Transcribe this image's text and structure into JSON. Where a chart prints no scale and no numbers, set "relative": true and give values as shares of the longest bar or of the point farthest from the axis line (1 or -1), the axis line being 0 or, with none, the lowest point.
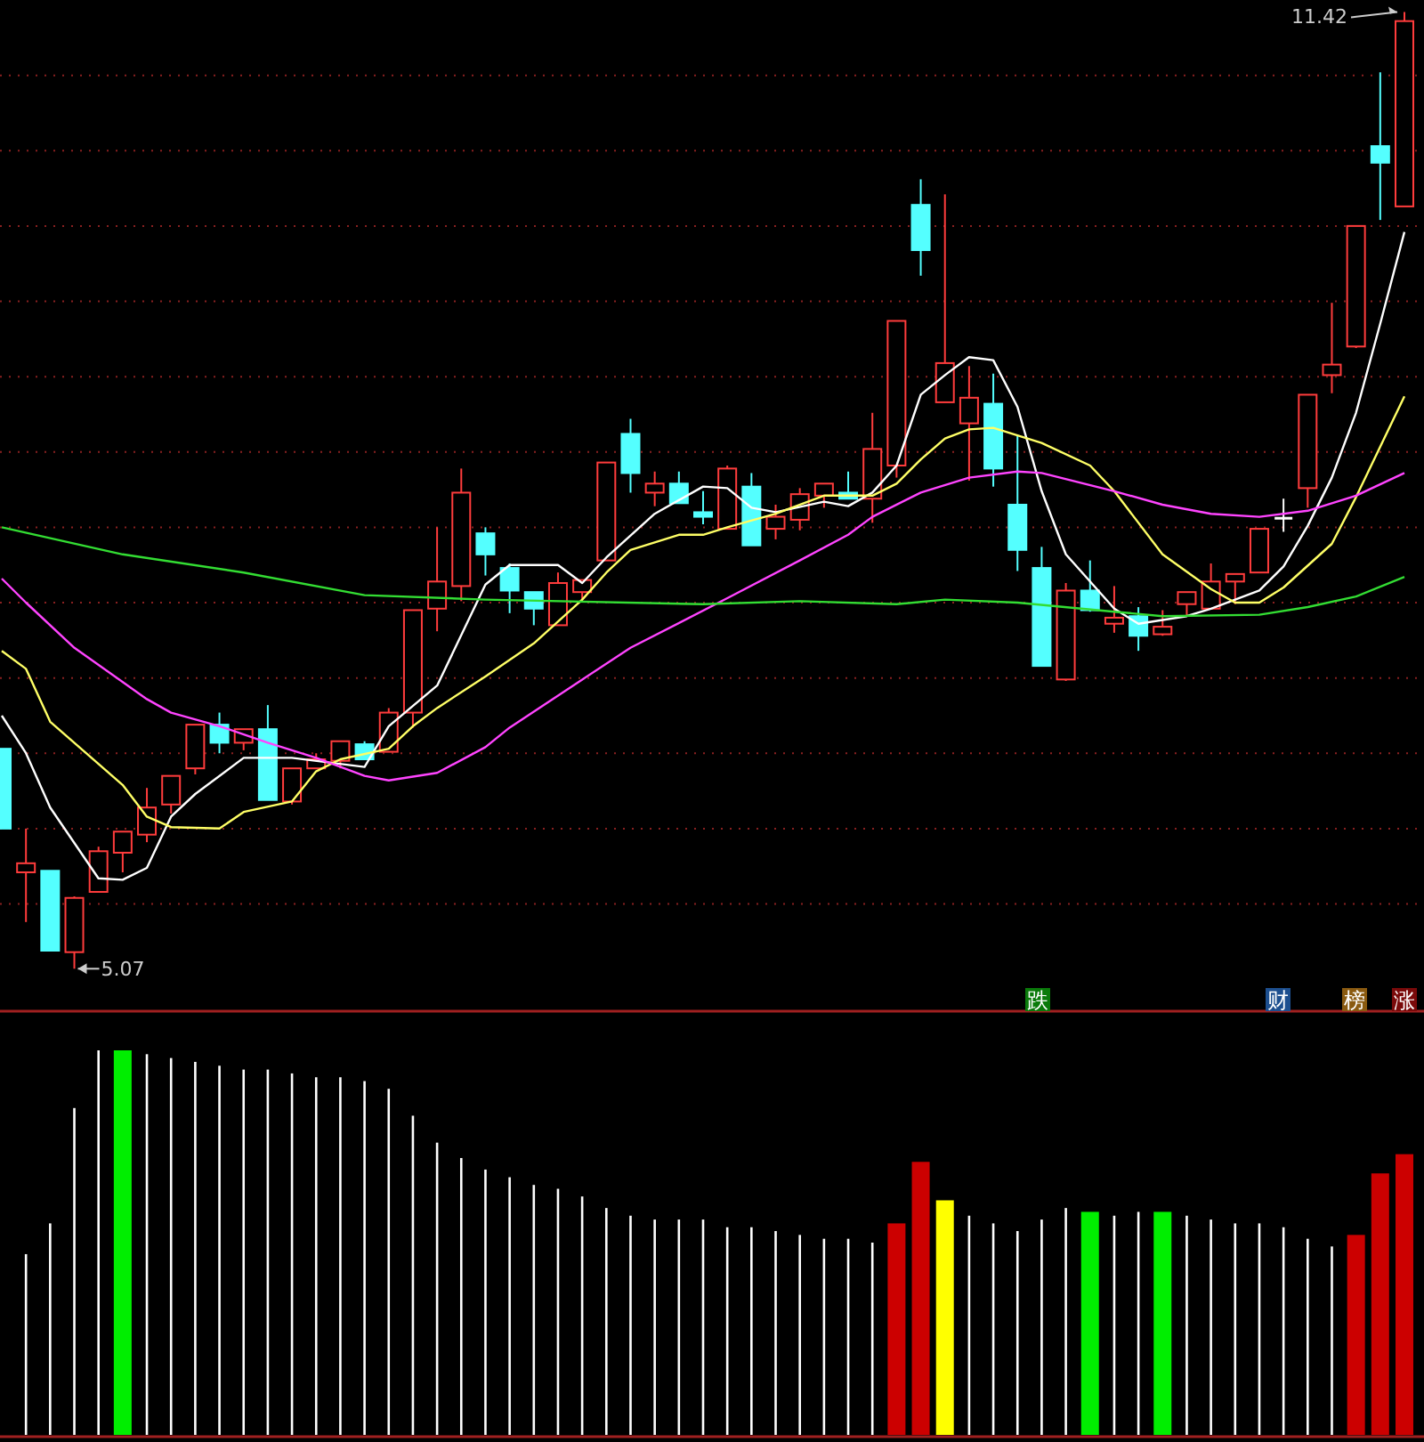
{
  "chart_data": [
    {
      "type": "candlestick",
      "categories": [
        null,
        null,
        null,
        null,
        null,
        null,
        null,
        null,
        null,
        null,
        null,
        null,
        null,
        null,
        null,
        null,
        null,
        null,
        null,
        null,
        null,
        null,
        null,
        null,
        null,
        null,
        null,
        null,
        null,
        null,
        null,
        null,
        null,
        null,
        null,
        null,
        null,
        null,
        null,
        null,
        null,
        null,
        null,
        null,
        null,
        null,
        null,
        null,
        null,
        null,
        null,
        null,
        null,
        null,
        null,
        null,
        null,
        null,
        null
      ],
      "ohlc": [
        [
          6.53,
          6.53,
          6.0,
          6.0
        ],
        [
          5.71,
          6.0,
          5.38,
          5.77
        ],
        [
          5.72,
          5.72,
          5.19,
          5.19
        ],
        [
          5.18,
          5.55,
          5.07,
          5.54
        ],
        [
          5.58,
          5.88,
          5.58,
          5.85
        ],
        [
          5.84,
          5.98,
          5.71,
          5.98
        ],
        [
          5.96,
          6.27,
          5.91,
          6.14
        ],
        [
          6.16,
          6.35,
          6.1,
          6.35
        ],
        [
          6.4,
          6.69,
          6.36,
          6.69
        ],
        [
          6.69,
          6.77,
          6.5,
          6.57
        ],
        [
          6.57,
          6.66,
          6.52,
          6.66
        ],
        [
          6.66,
          6.82,
          6.19,
          6.19
        ],
        [
          6.18,
          6.4,
          6.16,
          6.4
        ],
        [
          6.4,
          6.5,
          6.4,
          6.46
        ],
        [
          6.45,
          6.58,
          6.4,
          6.58
        ],
        [
          6.56,
          6.58,
          6.46,
          6.46
        ],
        [
          6.51,
          6.8,
          6.51,
          6.77
        ],
        [
          6.77,
          7.45,
          6.67,
          7.45
        ],
        [
          7.46,
          8.0,
          7.31,
          7.64
        ],
        [
          7.61,
          8.39,
          7.51,
          8.23
        ],
        [
          7.96,
          8.0,
          7.68,
          7.82
        ],
        [
          7.73,
          7.76,
          7.43,
          7.58
        ],
        [
          7.57,
          7.57,
          7.35,
          7.46
        ],
        [
          7.35,
          7.7,
          7.35,
          7.63
        ],
        [
          7.57,
          7.65,
          7.5,
          7.65
        ],
        [
          7.78,
          8.43,
          7.78,
          8.43
        ],
        [
          8.62,
          8.72,
          8.23,
          8.36
        ],
        [
          8.23,
          8.37,
          8.14,
          8.29
        ],
        [
          8.29,
          8.37,
          8.16,
          8.16
        ],
        [
          8.1,
          8.24,
          8.02,
          8.07
        ],
        [
          7.99,
          8.41,
          7.99,
          8.39
        ],
        [
          8.27,
          8.36,
          7.88,
          7.88
        ],
        [
          7.99,
          8.15,
          7.92,
          8.07
        ],
        [
          8.05,
          8.26,
          7.98,
          8.22
        ],
        [
          8.21,
          8.29,
          8.13,
          8.29
        ],
        [
          8.23,
          8.37,
          8.19,
          8.19
        ],
        [
          8.19,
          8.76,
          8.03,
          8.52
        ],
        [
          8.41,
          9.37,
          8.33,
          9.37
        ],
        [
          10.14,
          10.31,
          9.67,
          9.84
        ],
        [
          8.83,
          10.21,
          8.83,
          9.09
        ],
        [
          8.69,
          9.07,
          8.31,
          8.86
        ],
        [
          8.82,
          9.02,
          8.27,
          8.39
        ],
        [
          8.15,
          8.61,
          7.71,
          7.85
        ],
        [
          7.73,
          7.87,
          7.08,
          7.08
        ],
        [
          6.99,
          7.63,
          6.98,
          7.58
        ],
        [
          7.58,
          7.78,
          7.44,
          7.45
        ],
        [
          7.36,
          7.61,
          7.3,
          7.4
        ],
        [
          7.41,
          7.47,
          7.18,
          7.28
        ],
        [
          7.29,
          7.45,
          7.28,
          7.34
        ],
        [
          7.49,
          7.57,
          7.41,
          7.57
        ],
        [
          7.46,
          7.76,
          7.46,
          7.64
        ],
        [
          7.64,
          7.69,
          7.49,
          7.69
        ],
        [
          7.7,
          7.99,
          7.7,
          7.99
        ],
        [
          8.06,
          8.19,
          7.97,
          8.06
        ],
        [
          8.26,
          8.88,
          8.13,
          8.88
        ],
        [
          9.01,
          9.49,
          8.89,
          9.08
        ],
        [
          9.2,
          10.0,
          9.19,
          10.0
        ],
        [
          10.53,
          11.02,
          10.04,
          10.42
        ],
        [
          10.13,
          11.42,
          10.13,
          11.36
        ]
      ],
      "series": [
        {
          "type": "line",
          "color": "#ffffff",
          "values": [
            6.75,
            6.5,
            6.14,
            null,
            5.67,
            5.66,
            5.74,
            6.08,
            6.23,
            null,
            6.47,
            null,
            6.47,
            null,
            null,
            6.41,
            6.68,
            null,
            6.95,
            null,
            7.62,
            7.75,
            null,
            7.75,
            7.63,
            7.8,
            null,
            8.09,
            null,
            8.27,
            8.26,
            8.13,
            8.1,
            null,
            8.17,
            8.14,
            8.23,
            8.41,
            8.88,
            9.01,
            9.13,
            9.11,
            8.8,
            8.24,
            7.82,
            null,
            7.46,
            7.36,
            null,
            7.41,
            7.46,
            null,
            7.58,
            7.74,
            8.01,
            8.33,
            8.76,
            9.35,
            9.96
          ]
        },
        {
          "type": "line",
          "color": "#ffff66",
          "values": [
            7.18,
            7.06,
            6.71,
            null,
            null,
            6.29,
            6.08,
            6.01,
            null,
            6.0,
            6.11,
            null,
            6.18,
            6.38,
            6.46,
            null,
            6.53,
            6.68,
            6.8,
            null,
            7.01,
            null,
            7.23,
            null,
            7.52,
            7.7,
            7.85,
            null,
            7.95,
            7.95,
            8.0,
            null,
            8.09,
            null,
            8.21,
            null,
            8.21,
            8.29,
            8.45,
            8.59,
            8.65,
            8.66,
            null,
            8.56,
            null,
            8.41,
            8.24,
            null,
            7.82,
            null,
            7.59,
            7.5,
            7.5,
            7.6,
            null,
            7.89,
            8.2,
            null,
            8.87
          ]
        },
        {
          "type": "line",
          "color": "#ff44ff",
          "values": [
            7.66,
            7.5,
            null,
            7.2,
            null,
            null,
            6.86,
            6.77,
            null,
            6.68,
            null,
            6.57,
            null,
            6.47,
            null,
            6.35,
            6.32,
            null,
            6.37,
            null,
            6.54,
            6.67,
            null,
            null,
            6.99,
            null,
            7.2,
            null,
            null,
            null,
            7.53,
            null,
            null,
            7.78,
            null,
            7.95,
            8.07,
            null,
            8.23,
            null,
            8.33,
            null,
            8.37,
            8.36,
            null,
            null,
            8.24,
            null,
            8.15,
            null,
            8.09,
            null,
            8.07,
            null,
            8.11,
            null,
            8.21,
            null,
            8.36
          ]
        },
        {
          "type": "line",
          "color": "#33dd33",
          "values": [
            8.0,
            null,
            null,
            null,
            null,
            7.82,
            null,
            null,
            null,
            null,
            7.7,
            null,
            null,
            null,
            null,
            7.55,
            null,
            null,
            null,
            null,
            7.52,
            null,
            null,
            null,
            null,
            null,
            null,
            null,
            null,
            7.49,
            null,
            null,
            null,
            7.51,
            null,
            null,
            null,
            7.49,
            null,
            7.52,
            null,
            null,
            7.5,
            null,
            null,
            null,
            7.44,
            null,
            7.41,
            null,
            null,
            null,
            7.42,
            null,
            7.47,
            null,
            7.54,
            null,
            7.67
          ]
        }
      ],
      "yticks": [
        {
          "value": 5.5,
          "label": null
        },
        {
          "value": 6.0,
          "label": null
        },
        {
          "value": 6.5,
          "label": null
        },
        {
          "value": 7.0,
          "label": null
        },
        {
          "value": 7.5,
          "label": null
        },
        {
          "value": 8.0,
          "label": null
        },
        {
          "value": 8.5,
          "label": null
        },
        {
          "value": 9.0,
          "label": null
        },
        {
          "value": 9.5,
          "label": null
        },
        {
          "value": 10.0,
          "label": null
        },
        {
          "value": 10.5,
          "label": null
        },
        {
          "value": 11.0,
          "label": null
        }
      ],
      "grid": "y",
      "annotations": [
        "11.42",
        "5.07"
      ]
    },
    {
      "type": "bar",
      "relative": true,
      "categories": [
        null,
        null,
        null,
        null,
        null,
        null,
        null,
        null,
        null,
        null,
        null,
        null,
        null,
        null,
        null,
        null,
        null,
        null,
        null,
        null,
        null,
        null,
        null,
        null,
        null,
        null,
        null,
        null,
        null,
        null,
        null,
        null,
        null,
        null,
        null,
        null,
        null,
        null,
        null,
        null,
        null,
        null,
        null,
        null,
        null,
        null,
        null,
        null,
        null,
        null,
        null,
        null,
        null,
        null,
        null,
        null,
        null,
        null,
        null
      ],
      "values": [
        null,
        0.47,
        0.55,
        0.85,
        1,
        1,
        0.99,
        0.98,
        0.97,
        0.96,
        0.95,
        0.95,
        0.94,
        0.93,
        0.93,
        0.92,
        0.9,
        0.83,
        0.76,
        0.72,
        0.69,
        0.67,
        0.65,
        0.64,
        0.62,
        0.59,
        0.57,
        0.56,
        0.56,
        0.56,
        0.54,
        0.54,
        0.53,
        0.52,
        0.51,
        0.51,
        0.5,
        0.55,
        0.71,
        0.61,
        0.57,
        0.55,
        0.53,
        0.56,
        0.59,
        0.58,
        0.57,
        0.58,
        0.58,
        0.57,
        0.56,
        0.55,
        0.55,
        0.54,
        0.51,
        0.49,
        0.52,
        0.68,
        0.73
      ],
      "colors": [
        null,
        "#ffffff",
        "#ffffff",
        "#ffffff",
        "#ffffff",
        "#00ee00",
        "#ffffff",
        "#ffffff",
        "#ffffff",
        "#ffffff",
        "#ffffff",
        "#ffffff",
        "#ffffff",
        "#ffffff",
        "#ffffff",
        "#ffffff",
        "#ffffff",
        "#ffffff",
        "#ffffff",
        "#ffffff",
        "#ffffff",
        "#ffffff",
        "#ffffff",
        "#ffffff",
        "#ffffff",
        "#ffffff",
        "#ffffff",
        "#ffffff",
        "#ffffff",
        "#ffffff",
        "#ffffff",
        "#ffffff",
        "#ffffff",
        "#ffffff",
        "#ffffff",
        "#ffffff",
        "#ffffff",
        "#cc0000",
        "#cc0000",
        "#ffff00",
        "#ffffff",
        "#ffffff",
        "#ffffff",
        "#ffffff",
        "#ffffff",
        "#00ee00",
        "#ffffff",
        "#ffffff",
        "#00ee00",
        "#ffffff",
        "#ffffff",
        "#ffffff",
        "#ffffff",
        "#ffffff",
        "#ffffff",
        "#ffffff",
        "#cc0000",
        "#cc0000",
        "#cc0000"
      ],
      "annotations": [
        "跌",
        "财",
        "榜",
        "涨"
      ]
    }
  ]
}
